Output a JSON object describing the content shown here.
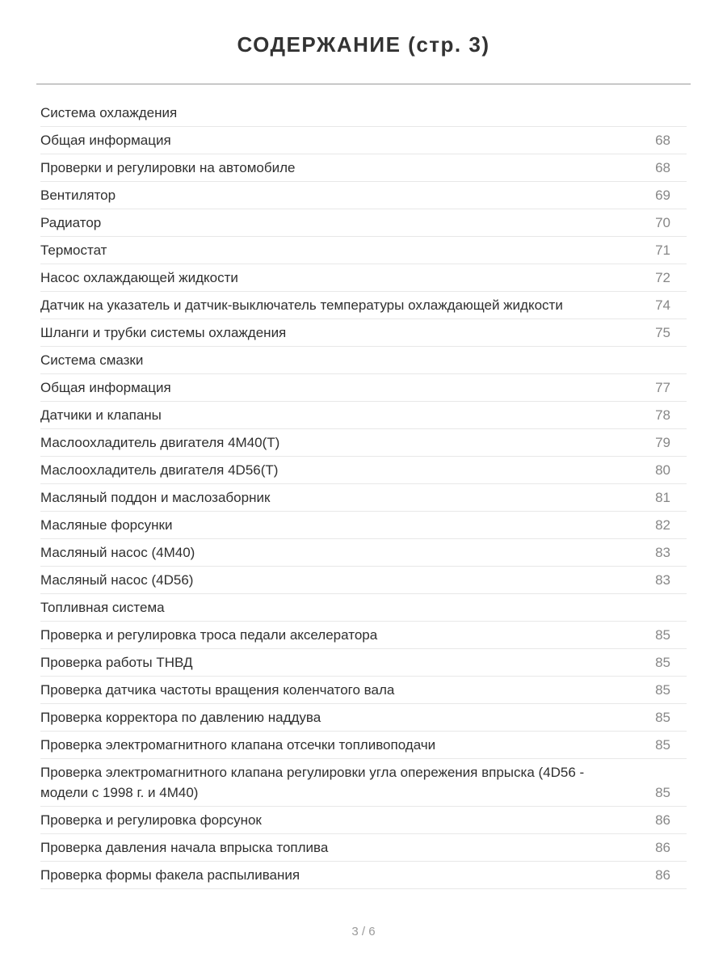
{
  "page": {
    "title": "СОДЕРЖАНИЕ (стр. 3)",
    "footer": "3 / 6"
  },
  "colors": {
    "text": "#2f2f2f",
    "page_number": "#878787",
    "divider": "#e8e8e8",
    "title_rule": "#c8c8c8",
    "footer_text": "#9a9a9a",
    "background": "#ffffff"
  },
  "toc": {
    "entries": [
      {
        "type": "section",
        "label": "Система охлаждения",
        "page": ""
      },
      {
        "type": "item",
        "label": "Общая информация",
        "page": "68"
      },
      {
        "type": "item",
        "label": "Проверки и регулировки на автомобиле",
        "page": "68"
      },
      {
        "type": "item",
        "label": "Вентилятор",
        "page": "69"
      },
      {
        "type": "item",
        "label": "Радиатор",
        "page": "70"
      },
      {
        "type": "item",
        "label": "Термостат",
        "page": "71"
      },
      {
        "type": "item",
        "label": "Насос охлаждающей жидкости",
        "page": "72"
      },
      {
        "type": "item",
        "label": "Датчик на указатель и датчик-выключатель температуры охлаждающей жидкости",
        "page": "74"
      },
      {
        "type": "item",
        "label": "Шланги и трубки системы охлаждения",
        "page": "75"
      },
      {
        "type": "section",
        "label": "Система смазки",
        "page": ""
      },
      {
        "type": "item",
        "label": "Общая информация",
        "page": "77"
      },
      {
        "type": "item",
        "label": "Датчики и клапаны",
        "page": "78"
      },
      {
        "type": "item",
        "label": "Маслоохладитель двигателя 4М40(Т)",
        "page": "79"
      },
      {
        "type": "item",
        "label": "Маслоохладитель двигателя 4D56(Т)",
        "page": "80"
      },
      {
        "type": "item",
        "label": "Масляный поддон и маслозаборник",
        "page": "81"
      },
      {
        "type": "item",
        "label": "Масляные форсунки",
        "page": "82"
      },
      {
        "type": "item",
        "label": "Масляный насос (4М40)",
        "page": "83"
      },
      {
        "type": "item",
        "label": "Масляный насос (4D56)",
        "page": "83"
      },
      {
        "type": "section",
        "label": "Топливная система",
        "page": ""
      },
      {
        "type": "item",
        "label": "Проверка и регулировка троса педали акселератора",
        "page": "85"
      },
      {
        "type": "item",
        "label": "Проверка работы ТНВД",
        "page": "85"
      },
      {
        "type": "item",
        "label": "Проверка датчика частоты вращения коленчатого вала",
        "page": "85"
      },
      {
        "type": "item",
        "label": "Проверка корректора по давлению наддува",
        "page": "85"
      },
      {
        "type": "item",
        "label": "Проверка электромагнитного клапана отсечки топливоподачи",
        "page": "85"
      },
      {
        "type": "item",
        "label": "Проверка электромагнитного клапана регулировки угла опережения впрыска (4D56 - модели с 1998 г. и 4М40)",
        "page": "85"
      },
      {
        "type": "item",
        "label": "Проверка и регулировка форсунок",
        "page": "86"
      },
      {
        "type": "item",
        "label": "Проверка давления начала впрыска топлива",
        "page": "86"
      },
      {
        "type": "item",
        "label": "Проверка формы факела распыливания",
        "page": "86"
      }
    ]
  }
}
